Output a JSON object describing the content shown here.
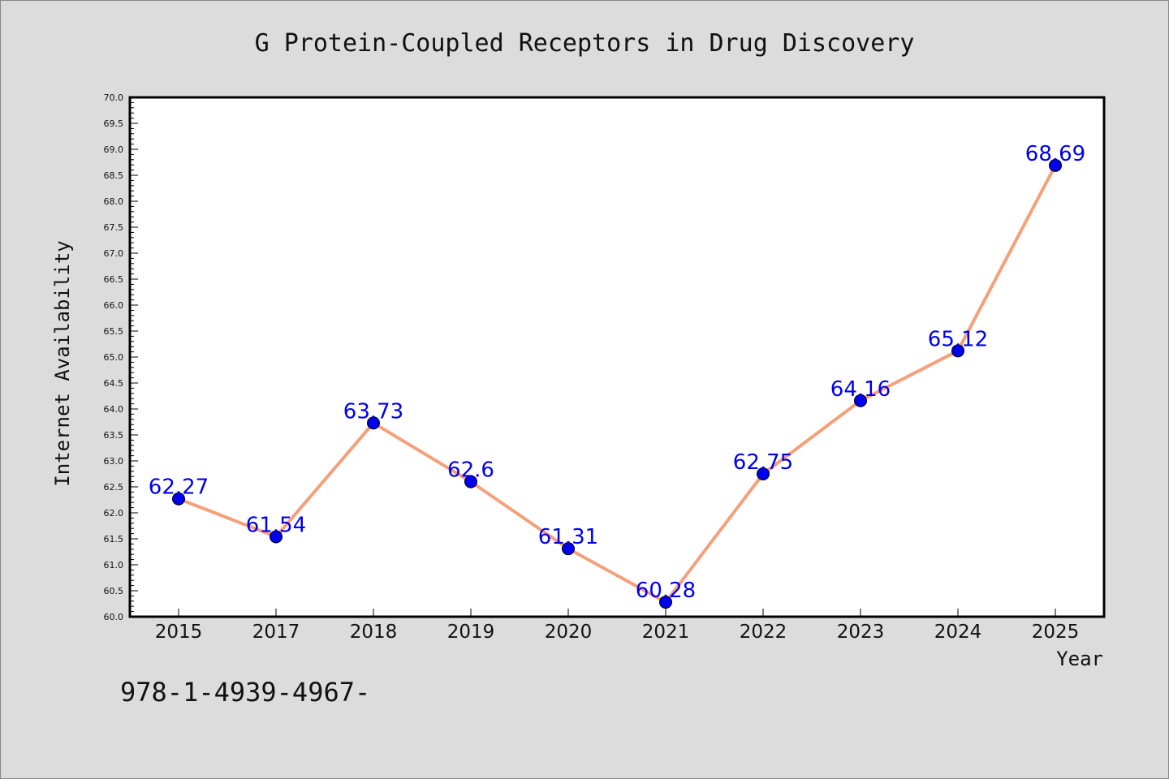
{
  "chart_data": {
    "type": "line",
    "title": "G Protein-Coupled Receptors in Drug Discovery",
    "xlabel": "Year",
    "ylabel": "Internet Availability",
    "categories": [
      "2015",
      "2017",
      "2018",
      "2019",
      "2020",
      "2021",
      "2022",
      "2023",
      "2024",
      "2025"
    ],
    "values": [
      62.27,
      61.54,
      63.73,
      62.6,
      61.31,
      60.28,
      62.75,
      64.16,
      65.12,
      68.69
    ],
    "data_labels": [
      "62.27",
      "61.54",
      "63.73",
      "62.6",
      "61.31",
      "60.28",
      "62.75",
      "64.16",
      "65.12",
      "68.69"
    ],
    "ylim": [
      60.0,
      70.0
    ],
    "yticks": [
      "60.0",
      "60.5",
      "61.0",
      "61.5",
      "62.0",
      "62.5",
      "63.0",
      "63.5",
      "64.0",
      "64.5",
      "65.0",
      "65.5",
      "66.0",
      "66.5",
      "67.0",
      "67.5",
      "68.0",
      "68.5",
      "69.0",
      "69.5",
      "70.0"
    ],
    "grid": false,
    "legend": "none",
    "colors": {
      "line": "#f4a07a",
      "marker_fill": "#0000ee",
      "marker_edge": "#000000",
      "data_label": "#0000ee",
      "background": "#dcdcdc",
      "plot_background": "#ffffff"
    }
  },
  "footer": {
    "text": "978-1-4939-4967-"
  }
}
